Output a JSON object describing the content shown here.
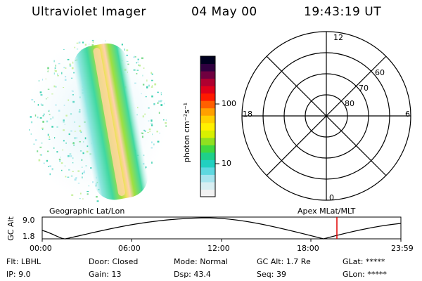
{
  "header": {
    "instrument": "Ultraviolet Imager",
    "date": "04 May 00",
    "time": "19:43:19 UT"
  },
  "colorbar": {
    "unit_label": "photon cm⁻²s⁻¹",
    "tick_100": "100",
    "tick_10": "10",
    "colors": [
      "#f2f2f2",
      "#d8eef2",
      "#a8e4ee",
      "#5fd8e0",
      "#22d0c0",
      "#1fd08a",
      "#40d840",
      "#90e020",
      "#d8f000",
      "#fff000",
      "#ffd000",
      "#ffa000",
      "#ff6000",
      "#ff1a00",
      "#e0001a",
      "#b00030",
      "#700040",
      "#300040",
      "#000020"
    ]
  },
  "polar": {
    "mlt_top": "12",
    "mlt_bottom": "0",
    "mlt_left": "18",
    "mlt_right": "6",
    "lat_60": "60",
    "lat_70": "70",
    "lat_80": "80"
  },
  "orbit": {
    "left_label": "Geographic Lat/Lon",
    "right_label": "Apex MLat/MLT",
    "y_axis_title": "GC Alt",
    "y_top": "9.0",
    "y_bottom": "1.8",
    "x_ticks": [
      "00:00",
      "06:00",
      "12:00",
      "18:00",
      "23:59"
    ],
    "marker_color": "#e00000"
  },
  "status": {
    "flt_label": "Flt:",
    "flt_value": "LBHL",
    "ip_label": "IP:",
    "ip_value": "9.0",
    "door_label": "Door:",
    "door_value": "Closed",
    "gain_label": "Gain:",
    "gain_value": "13",
    "mode_label": "Mode:",
    "mode_value": "Normal",
    "dsp_label": "Dsp:",
    "dsp_value": "43.4",
    "gcalt_label": "GC Alt:",
    "gcalt_value": "1.7 Re",
    "seq_label": "Seq:",
    "seq_value": "39",
    "glat_label": "GLat:",
    "glat_value": "*****",
    "glon_label": "GLon:",
    "glon_value": "*****"
  }
}
